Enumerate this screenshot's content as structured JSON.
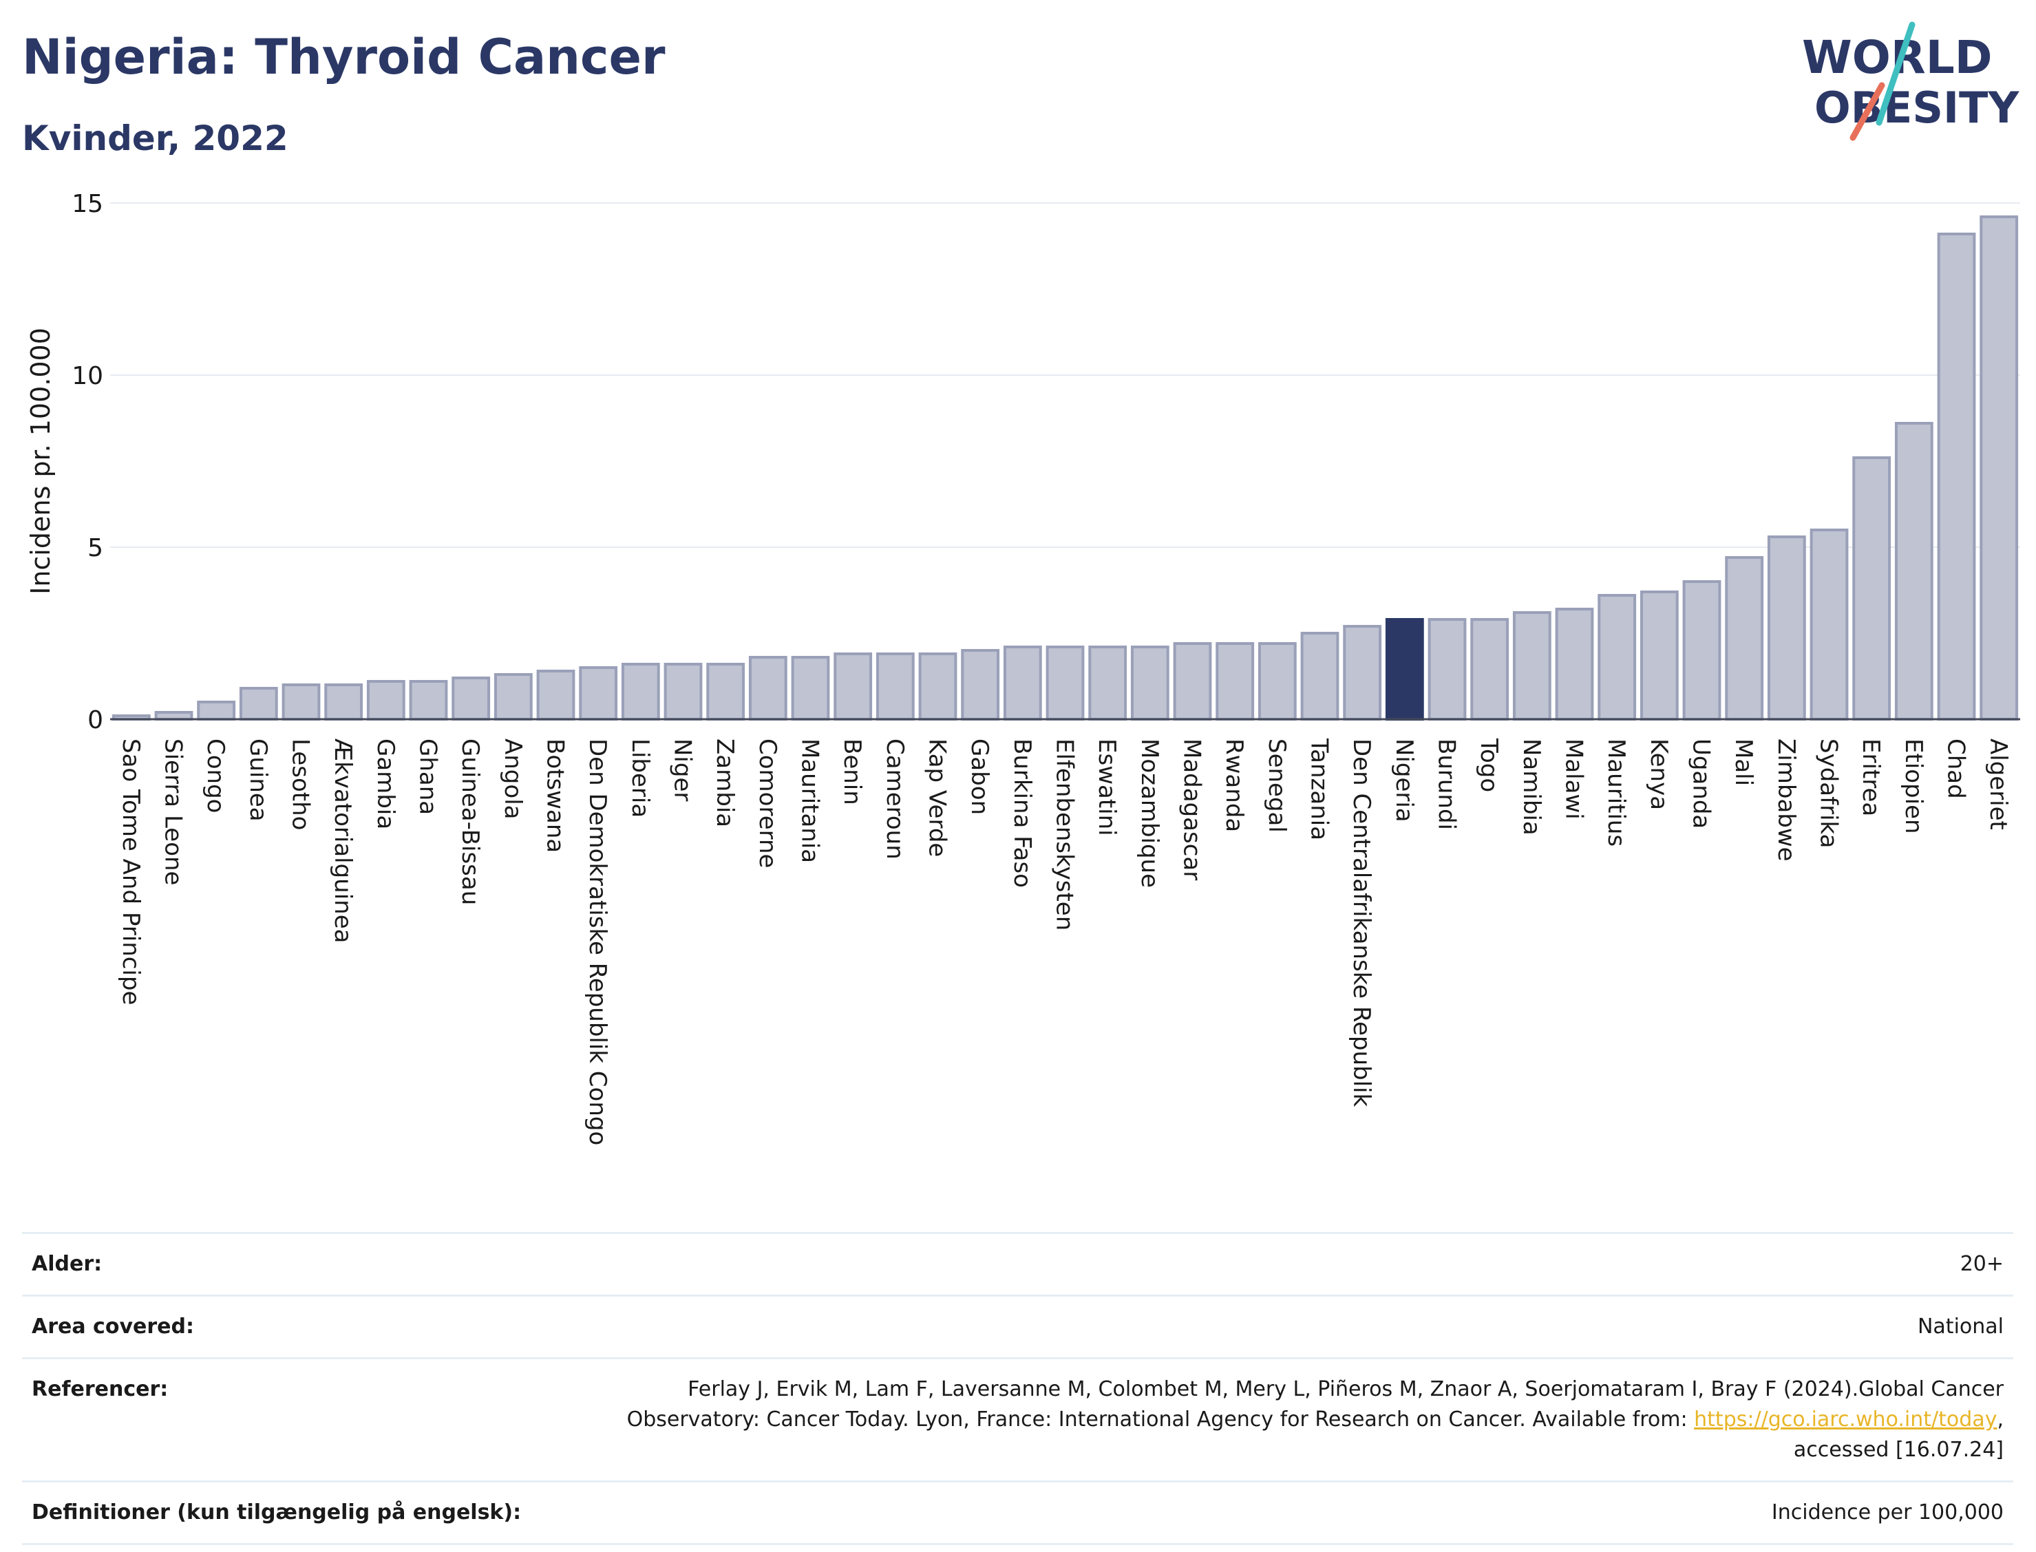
{
  "title": "Nigeria: Thyroid Cancer",
  "subtitle": "Kvinder, 2022",
  "logo": {
    "line1": "WORLD",
    "line2": "OBESITY",
    "accent_colors": [
      "#3fbfbf",
      "#e8705a"
    ]
  },
  "colors": {
    "title": "#2b3866",
    "bar": "#bfc3d2",
    "bar_border": "#9aa0b8",
    "highlight": "#2b3866",
    "link": "#e8b528"
  },
  "chart_data": {
    "type": "bar",
    "ylabel": "Incidens pr. 100.000",
    "xlabel": "",
    "ylim": [
      0,
      15
    ],
    "yticks": [
      0,
      5,
      10,
      15
    ],
    "grid": true,
    "highlight": "Nigeria",
    "categories": [
      "Sao Tome And Principe",
      "Sierra Leone",
      "Congo",
      "Guinea",
      "Lesotho",
      "Ækvatorialguinea",
      "Gambia",
      "Ghana",
      "Guinea-Bissau",
      "Angola",
      "Botswana",
      "Den Demokratiske Republik Congo",
      "Liberia",
      "Niger",
      "Zambia",
      "Comorerne",
      "Mauritania",
      "Benin",
      "Cameroun",
      "Kap Verde",
      "Gabon",
      "Burkina Faso",
      "Elfenbenskysten",
      "Eswatini",
      "Mozambique",
      "Madagascar",
      "Rwanda",
      "Senegal",
      "Tanzania",
      "Den Centralafrikanske Republik",
      "Nigeria",
      "Burundi",
      "Togo",
      "Namibia",
      "Malawi",
      "Mauritius",
      "Kenya",
      "Uganda",
      "Mali",
      "Zimbabwe",
      "Sydafrika",
      "Eritrea",
      "Etiopien",
      "Chad",
      "Algeriet"
    ],
    "values": [
      0.1,
      0.2,
      0.5,
      0.9,
      1.0,
      1.0,
      1.1,
      1.1,
      1.2,
      1.3,
      1.4,
      1.5,
      1.6,
      1.6,
      1.6,
      1.8,
      1.8,
      1.9,
      1.9,
      1.9,
      2.0,
      2.1,
      2.1,
      2.1,
      2.1,
      2.2,
      2.2,
      2.2,
      2.5,
      2.7,
      2.9,
      2.9,
      2.9,
      3.1,
      3.2,
      3.6,
      3.7,
      4.0,
      4.7,
      5.3,
      5.5,
      7.6,
      8.6,
      14.1,
      14.6
    ]
  },
  "meta": [
    {
      "label": "Alder:",
      "value_lines": [
        "20+"
      ]
    },
    {
      "label": "Area covered:",
      "value_lines": [
        "National"
      ]
    },
    {
      "label": "Referencer:",
      "value_lines": [
        "Ferlay J, Ervik M, Lam F, Laversanne M, Colombet M, Mery L, Piñeros M, Znaor A, Soerjomataram I, Bray F (2024).Global Cancer"
      ],
      "line2_text": "Observatory: Cancer Today. Lyon, France: International Agency for Research on Cancer. Available from: ",
      "link_text": "https://gco.iarc.who.int/today",
      "line2_end": ",",
      "line3": "accessed [16.07.24]"
    },
    {
      "label": "Definitioner (kun tilgængelig på engelsk):",
      "value_lines": [
        "Incidence per 100,000"
      ]
    }
  ]
}
